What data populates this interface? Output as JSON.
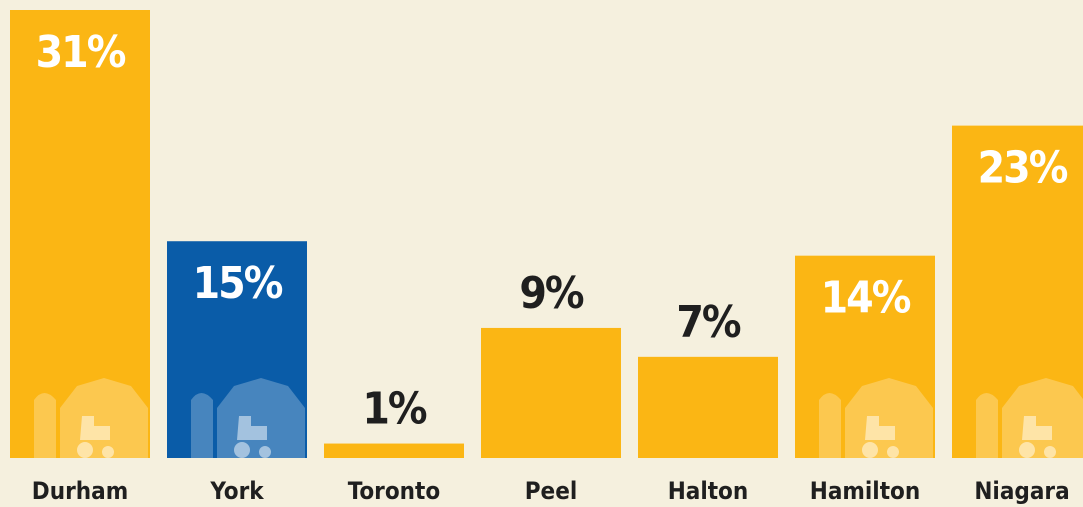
{
  "chart_data": {
    "type": "bar",
    "categories": [
      "Durham",
      "York",
      "Toronto",
      "Peel",
      "Halton",
      "Hamilton",
      "Niagara"
    ],
    "values": [
      31,
      15,
      1,
      9,
      7,
      14,
      23
    ],
    "value_labels": [
      "31%",
      "15%",
      "1%",
      "9%",
      "7%",
      "14%",
      "23%"
    ],
    "colors": [
      "#fbb614",
      "#0a5ca8",
      "#fbb614",
      "#fbb614",
      "#fbb614",
      "#fbb614",
      "#fbb614"
    ]
  }
}
